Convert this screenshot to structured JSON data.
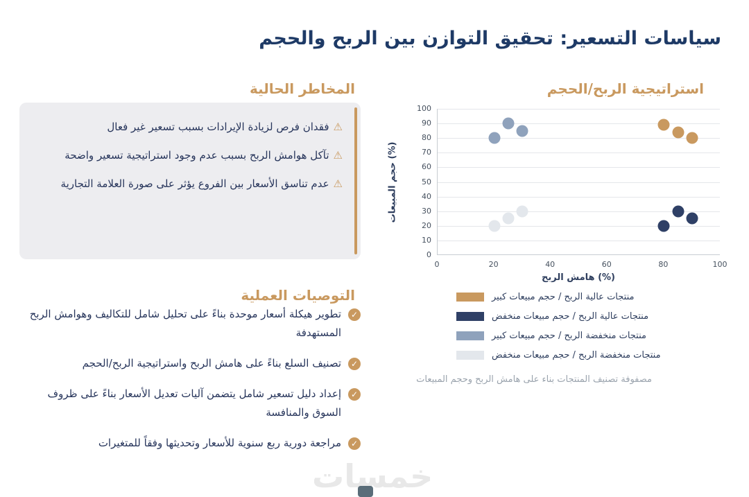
{
  "page": {
    "title": "سياسات التسعير: تحقيق التوازن بين الربح والحجم",
    "watermark": "خمسات"
  },
  "risks": {
    "heading": "المخاطر الحالية",
    "items": [
      "فقدان فرص لزيادة الإيرادات بسبب تسعير غير فعال",
      "تآكل هوامش الربح بسبب عدم وجود استراتيجية تسعير واضحة",
      "عدم تناسق الأسعار بين الفروع يؤثر على صورة العلامة التجارية"
    ]
  },
  "recommendations": {
    "heading": "التوصيات العملية",
    "items": [
      "تطوير هيكلة أسعار موحدة بناءً على تحليل شامل للتكاليف وهوامش الربح المستهدفة",
      "تصنيف السلع بناءً على هامش الربح واستراتيجية الربح/الحجم",
      "إعداد دليل تسعير شامل يتضمن آليات تعديل الأسعار بناءً على ظروف السوق والمنافسة",
      "مراجعة دورية ربع سنوية للأسعار وتحديثها وفقاً للمتغيرات"
    ]
  },
  "chart": {
    "heading": "استراتيجية الربح/الحجم",
    "caption": "مصفوفة تصنيف المنتجات بناء على هامش الربح وحجم المبيعات"
  },
  "chart_data": {
    "type": "scatter",
    "title": "استراتيجية الربح/الحجم",
    "xlabel": "هامش الربح (%)",
    "ylabel": "حجم المبيعات (%)",
    "xlim": [
      0,
      100
    ],
    "ylim": [
      0,
      100
    ],
    "x_ticks": [
      0,
      20,
      40,
      60,
      80,
      100
    ],
    "y_ticks": [
      0,
      10,
      20,
      30,
      40,
      50,
      60,
      70,
      80,
      90,
      100
    ],
    "grid": "horizontal",
    "legend_position": "bottom",
    "series": [
      {
        "name": "منتجات عالية الربح / حجم مبيعات كبير",
        "color": "#c9995f",
        "points": [
          [
            80,
            89
          ],
          [
            85,
            84
          ],
          [
            90,
            80
          ]
        ]
      },
      {
        "name": "منتجات عالية الربح / حجم مبيعات منخفض",
        "color": "#2f4066",
        "points": [
          [
            80,
            20
          ],
          [
            85,
            30
          ],
          [
            90,
            25
          ]
        ]
      },
      {
        "name": "منتجات منخفضة الربح / حجم مبيعات كبير",
        "color": "#8fa2bc",
        "points": [
          [
            20,
            80
          ],
          [
            25,
            90
          ],
          [
            30,
            85
          ]
        ]
      },
      {
        "name": "منتجات منخفضة الربح / حجم مبيعات منخفض",
        "color": "#e3e7ec",
        "points": [
          [
            20,
            20
          ],
          [
            25,
            25
          ],
          [
            30,
            30
          ]
        ]
      }
    ]
  },
  "icons": {
    "warning_icon": "⚠",
    "check_icon": "✓"
  },
  "colors": {
    "accent_gold": "#c9995f",
    "title_navy": "#1e3a66",
    "body_navy": "#27355b",
    "risk_box_bg": "#ededf0",
    "caption_gray": "#9aa3ad"
  }
}
